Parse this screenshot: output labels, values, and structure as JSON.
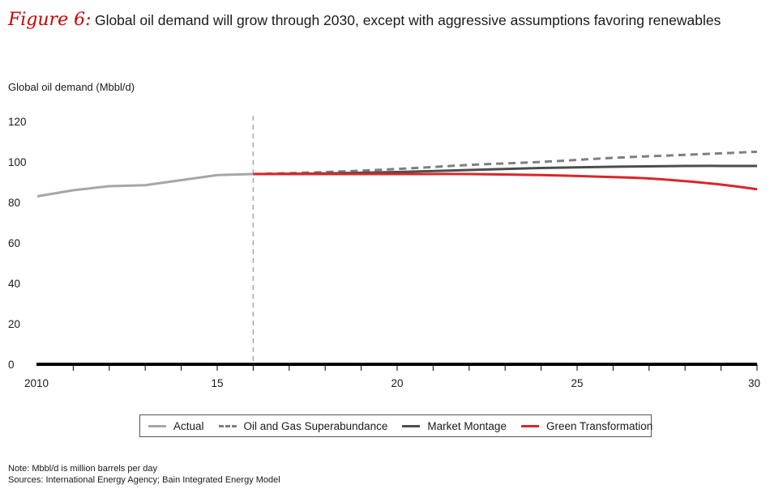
{
  "header": {
    "figure_label": "Figure 6:",
    "title": "Global oil demand will grow through 2030, except with aggressive assumptions favoring renewables"
  },
  "chart_data": {
    "type": "line",
    "title": "Global oil demand will grow through 2030, except with aggressive assumptions favoring renewables",
    "ylabel": "Global oil demand (Mbbl/d)",
    "xlabel": "",
    "xlim": [
      2010,
      2030
    ],
    "ylim": [
      0,
      120
    ],
    "yticks": [
      0,
      20,
      40,
      60,
      80,
      100,
      120
    ],
    "xtick_labels": [
      {
        "x": 2010,
        "label": "2010"
      },
      {
        "x": 2015,
        "label": "15"
      },
      {
        "x": 2020,
        "label": "20"
      },
      {
        "x": 2025,
        "label": "25"
      },
      {
        "x": 2030,
        "label": "30"
      }
    ],
    "divider_year": 2016,
    "legend_position": "bottom",
    "series": [
      {
        "name": "Actual",
        "color": "#a6a6a6",
        "dash": "solid",
        "x": [
          2010,
          2011,
          2012,
          2013,
          2014,
          2015,
          2016
        ],
        "values": [
          83,
          86,
          88,
          88.5,
          91,
          93.5,
          94
        ]
      },
      {
        "name": "Oil and Gas Superabundance",
        "color": "#7f7f7f",
        "dash": "dashed",
        "x": [
          2016,
          2018,
          2020,
          2022,
          2024,
          2026,
          2028,
          2030
        ],
        "values": [
          94,
          95,
          96.5,
          98.5,
          100,
          102,
          103.5,
          105
        ]
      },
      {
        "name": "Market Montage",
        "color": "#4d4d4d",
        "dash": "solid",
        "x": [
          2016,
          2018,
          2020,
          2022,
          2024,
          2026,
          2028,
          2030
        ],
        "values": [
          94,
          94.3,
          95,
          96,
          97,
          97.6,
          98,
          98
        ]
      },
      {
        "name": "Green Transformation",
        "color": "#d9262b",
        "dash": "solid",
        "x": [
          2016,
          2018,
          2020,
          2022,
          2024,
          2026,
          2027,
          2028,
          2029,
          2030
        ],
        "values": [
          94,
          94,
          94,
          94,
          93.5,
          92.5,
          91.8,
          90.5,
          88.8,
          86.5
        ]
      }
    ]
  },
  "footer": {
    "note": "Note: Mbbl/d is million barrels per day",
    "sources": "Sources: International Energy Agency; Bain Integrated Energy Model"
  }
}
